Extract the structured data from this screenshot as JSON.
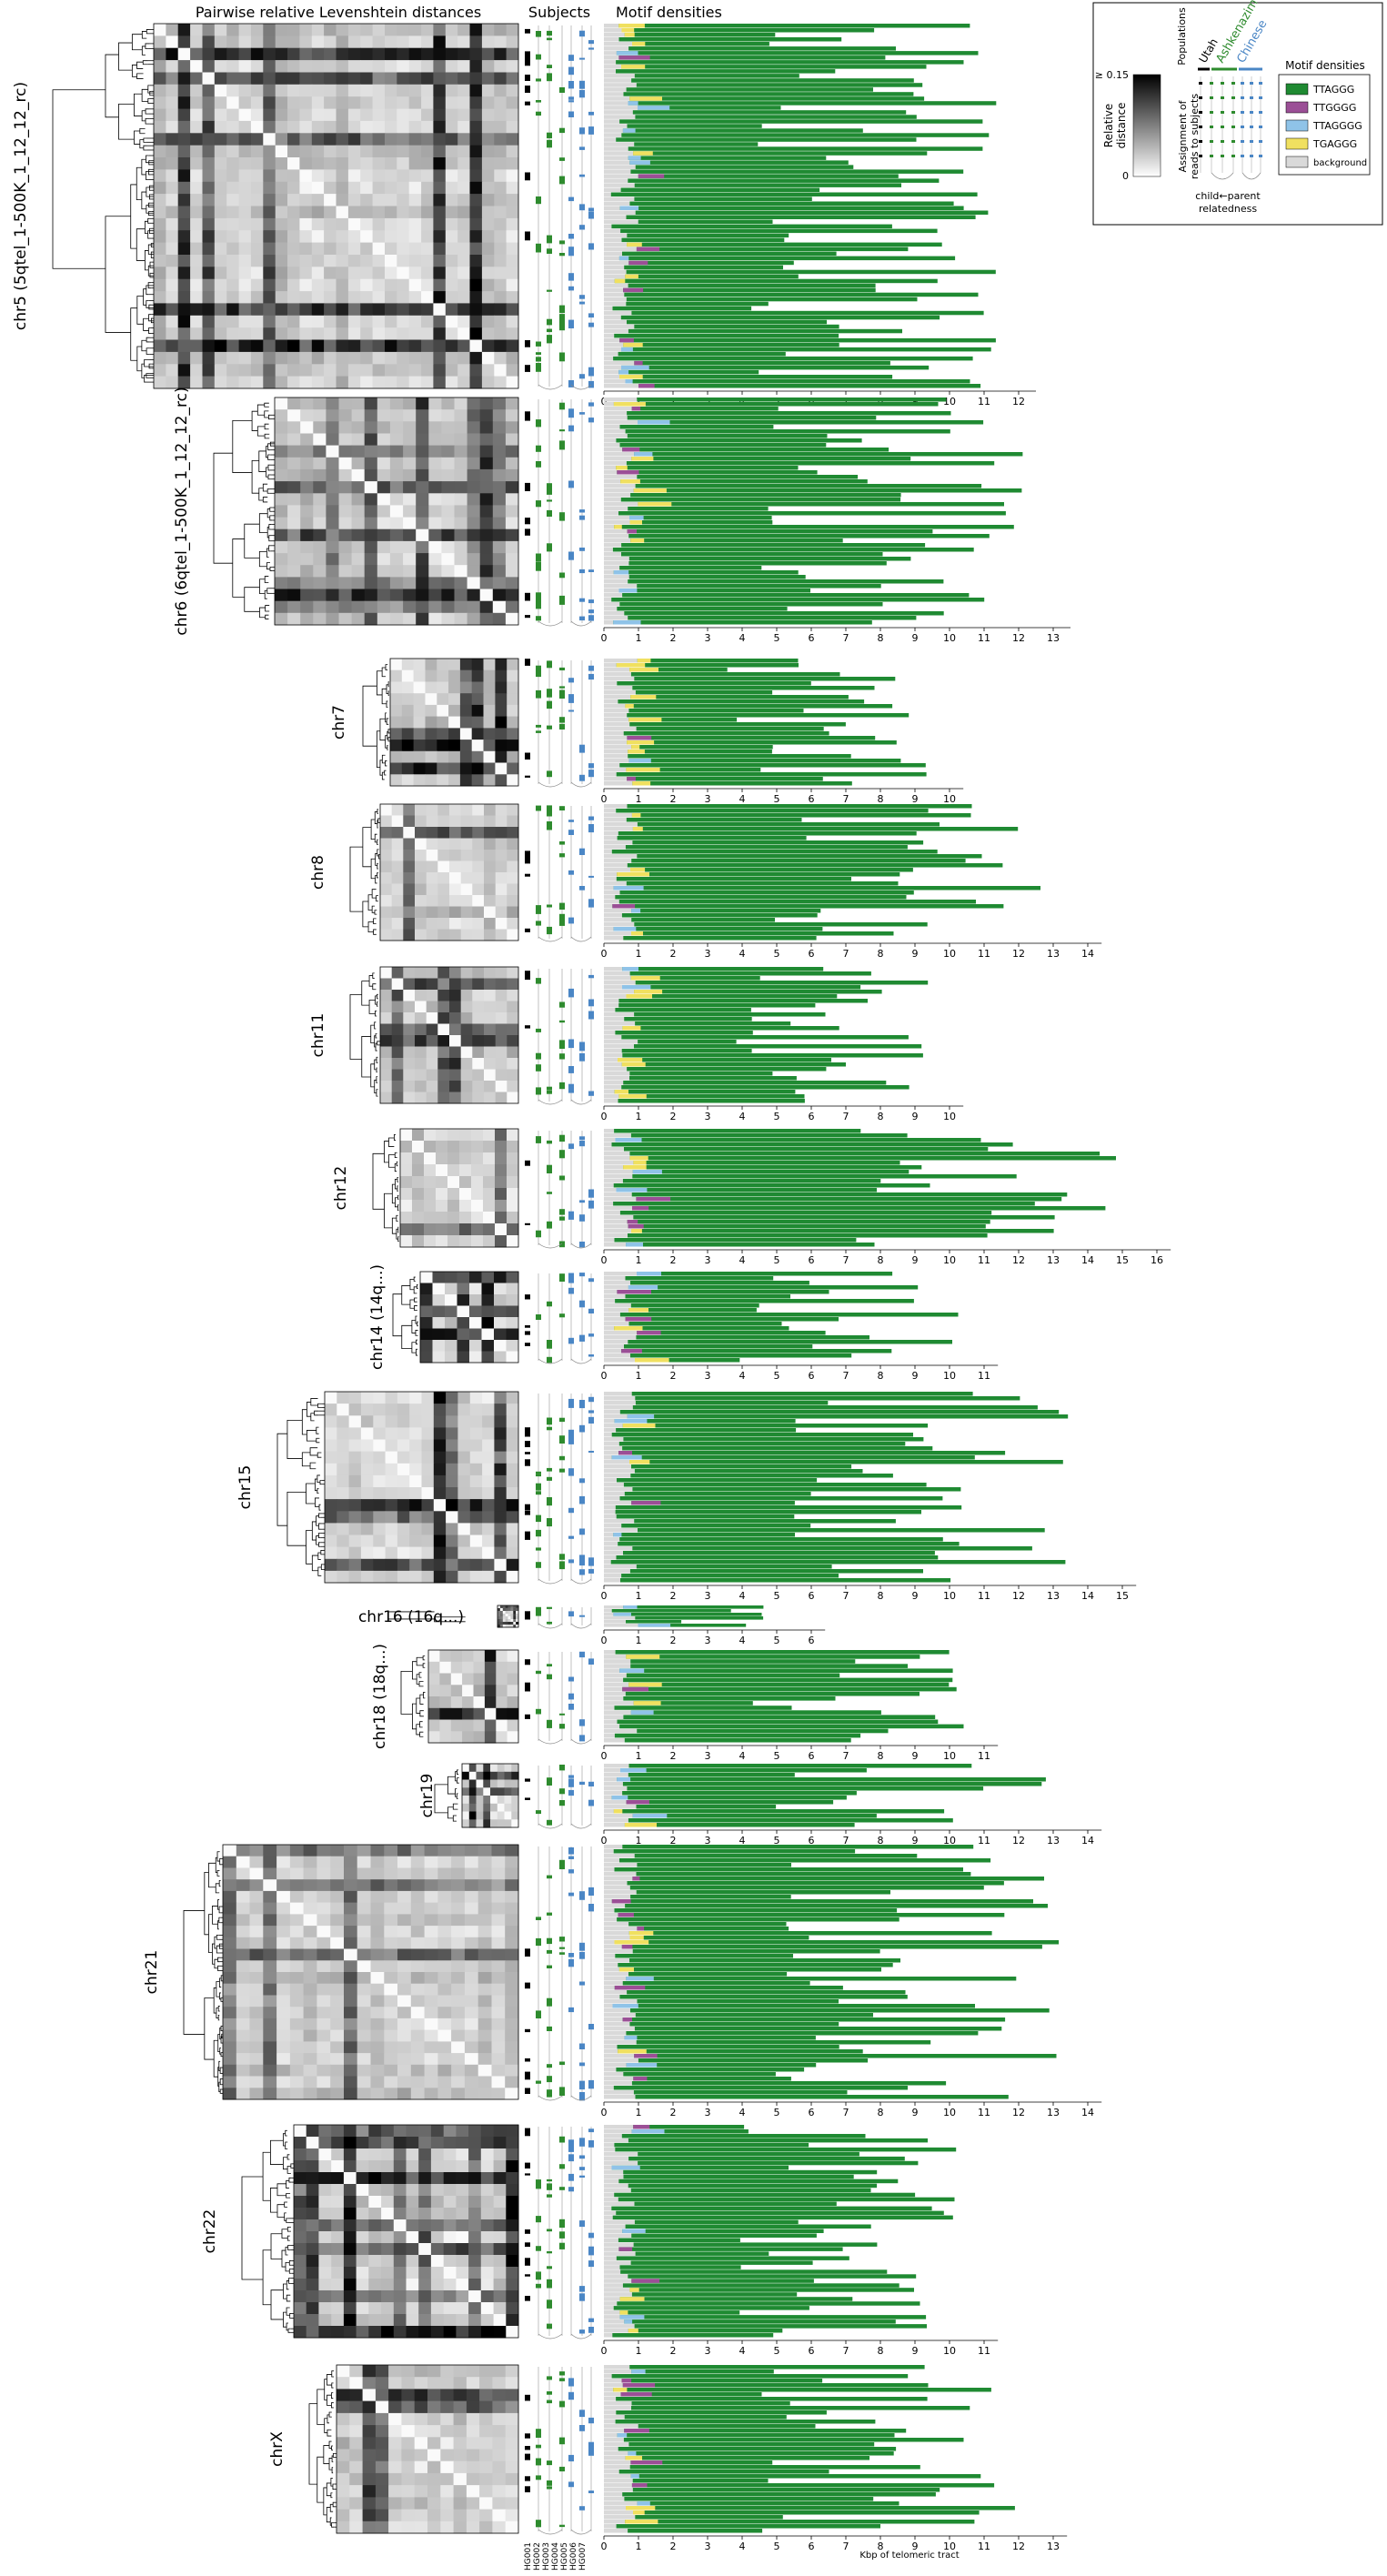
{
  "headers": {
    "distances": "Pairwise relative Levenshtein distances",
    "subjects": "Subjects",
    "motif": "Motif densities"
  },
  "legend": {
    "scale_top": "≥ 0.15",
    "scale_bottom": "0",
    "scale_label_line1": "Relative",
    "scale_label_line2": "distance",
    "populations_title": "Populations",
    "populations": [
      {
        "name": "Utah",
        "color": "#000000"
      },
      {
        "name": "Ashkenazim",
        "color": "#2e8b2e"
      },
      {
        "name": "Chinese",
        "color": "#4a86c5"
      }
    ],
    "assign_line1": "Assignment of",
    "assign_line2": "reads to subjects",
    "relatedness_line1": "child←parent",
    "relatedness_line2": "relatedness",
    "motif_title": "Motif densities",
    "motifs": [
      {
        "name": "TTAGGG",
        "color": "#1f8a32"
      },
      {
        "name": "TTGGGG",
        "color": "#9b4f96"
      },
      {
        "name": "TTAGGGG",
        "color": "#8fc3e8"
      },
      {
        "name": "TGAGGG",
        "color": "#f0e060"
      },
      {
        "name": "background",
        "color": "#d9d9d9"
      }
    ]
  },
  "subject_ids": [
    "HG001",
    "HG002",
    "HG003",
    "HG004",
    "HG005",
    "HG006",
    "HG007"
  ],
  "xaxis_label": "Kbp of telomeric tract",
  "chart_data": {
    "type": "heatmap",
    "title": "",
    "xlabel": "Kbp of telomeric tract",
    "ylabel": "",
    "legend_placement": "top-right",
    "panels": [
      {
        "chrom": "chr5 (5qtel_1-500K_1_12_12_rc)",
        "xmax": 12,
        "scale": 12.5
      },
      {
        "chrom": "chr6 (6qtel_1-500K_1_12_12_rc)",
        "xmax": 13,
        "scale": 13.5
      },
      {
        "chrom": "chr7",
        "xmax": 10,
        "scale": 10.4
      },
      {
        "chrom": "chr8",
        "xmax": 14,
        "scale": 14.4
      },
      {
        "chrom": "chr11",
        "xmax": 10,
        "scale": 10.4
      },
      {
        "chrom": "chr12",
        "xmax": 16,
        "scale": 16.4
      },
      {
        "chrom": "chr14 (14q...)",
        "xmax": 11,
        "scale": 11.4
      },
      {
        "chrom": "chr15",
        "xmax": 15,
        "scale": 15.4
      },
      {
        "chrom": "chr16 (16q...)",
        "xmax": 6,
        "scale": 6.4
      },
      {
        "chrom": "chr18 (18q...)",
        "xmax": 11,
        "scale": 11.4
      },
      {
        "chrom": "chr19",
        "xmax": 14,
        "scale": 14.4
      },
      {
        "chrom": "chr21",
        "xmax": 14,
        "scale": 14.4
      },
      {
        "chrom": "chr22",
        "xmax": 11,
        "scale": 11.4
      },
      {
        "chrom": "chrX",
        "xmax": 13,
        "scale": 13.4
      }
    ]
  }
}
